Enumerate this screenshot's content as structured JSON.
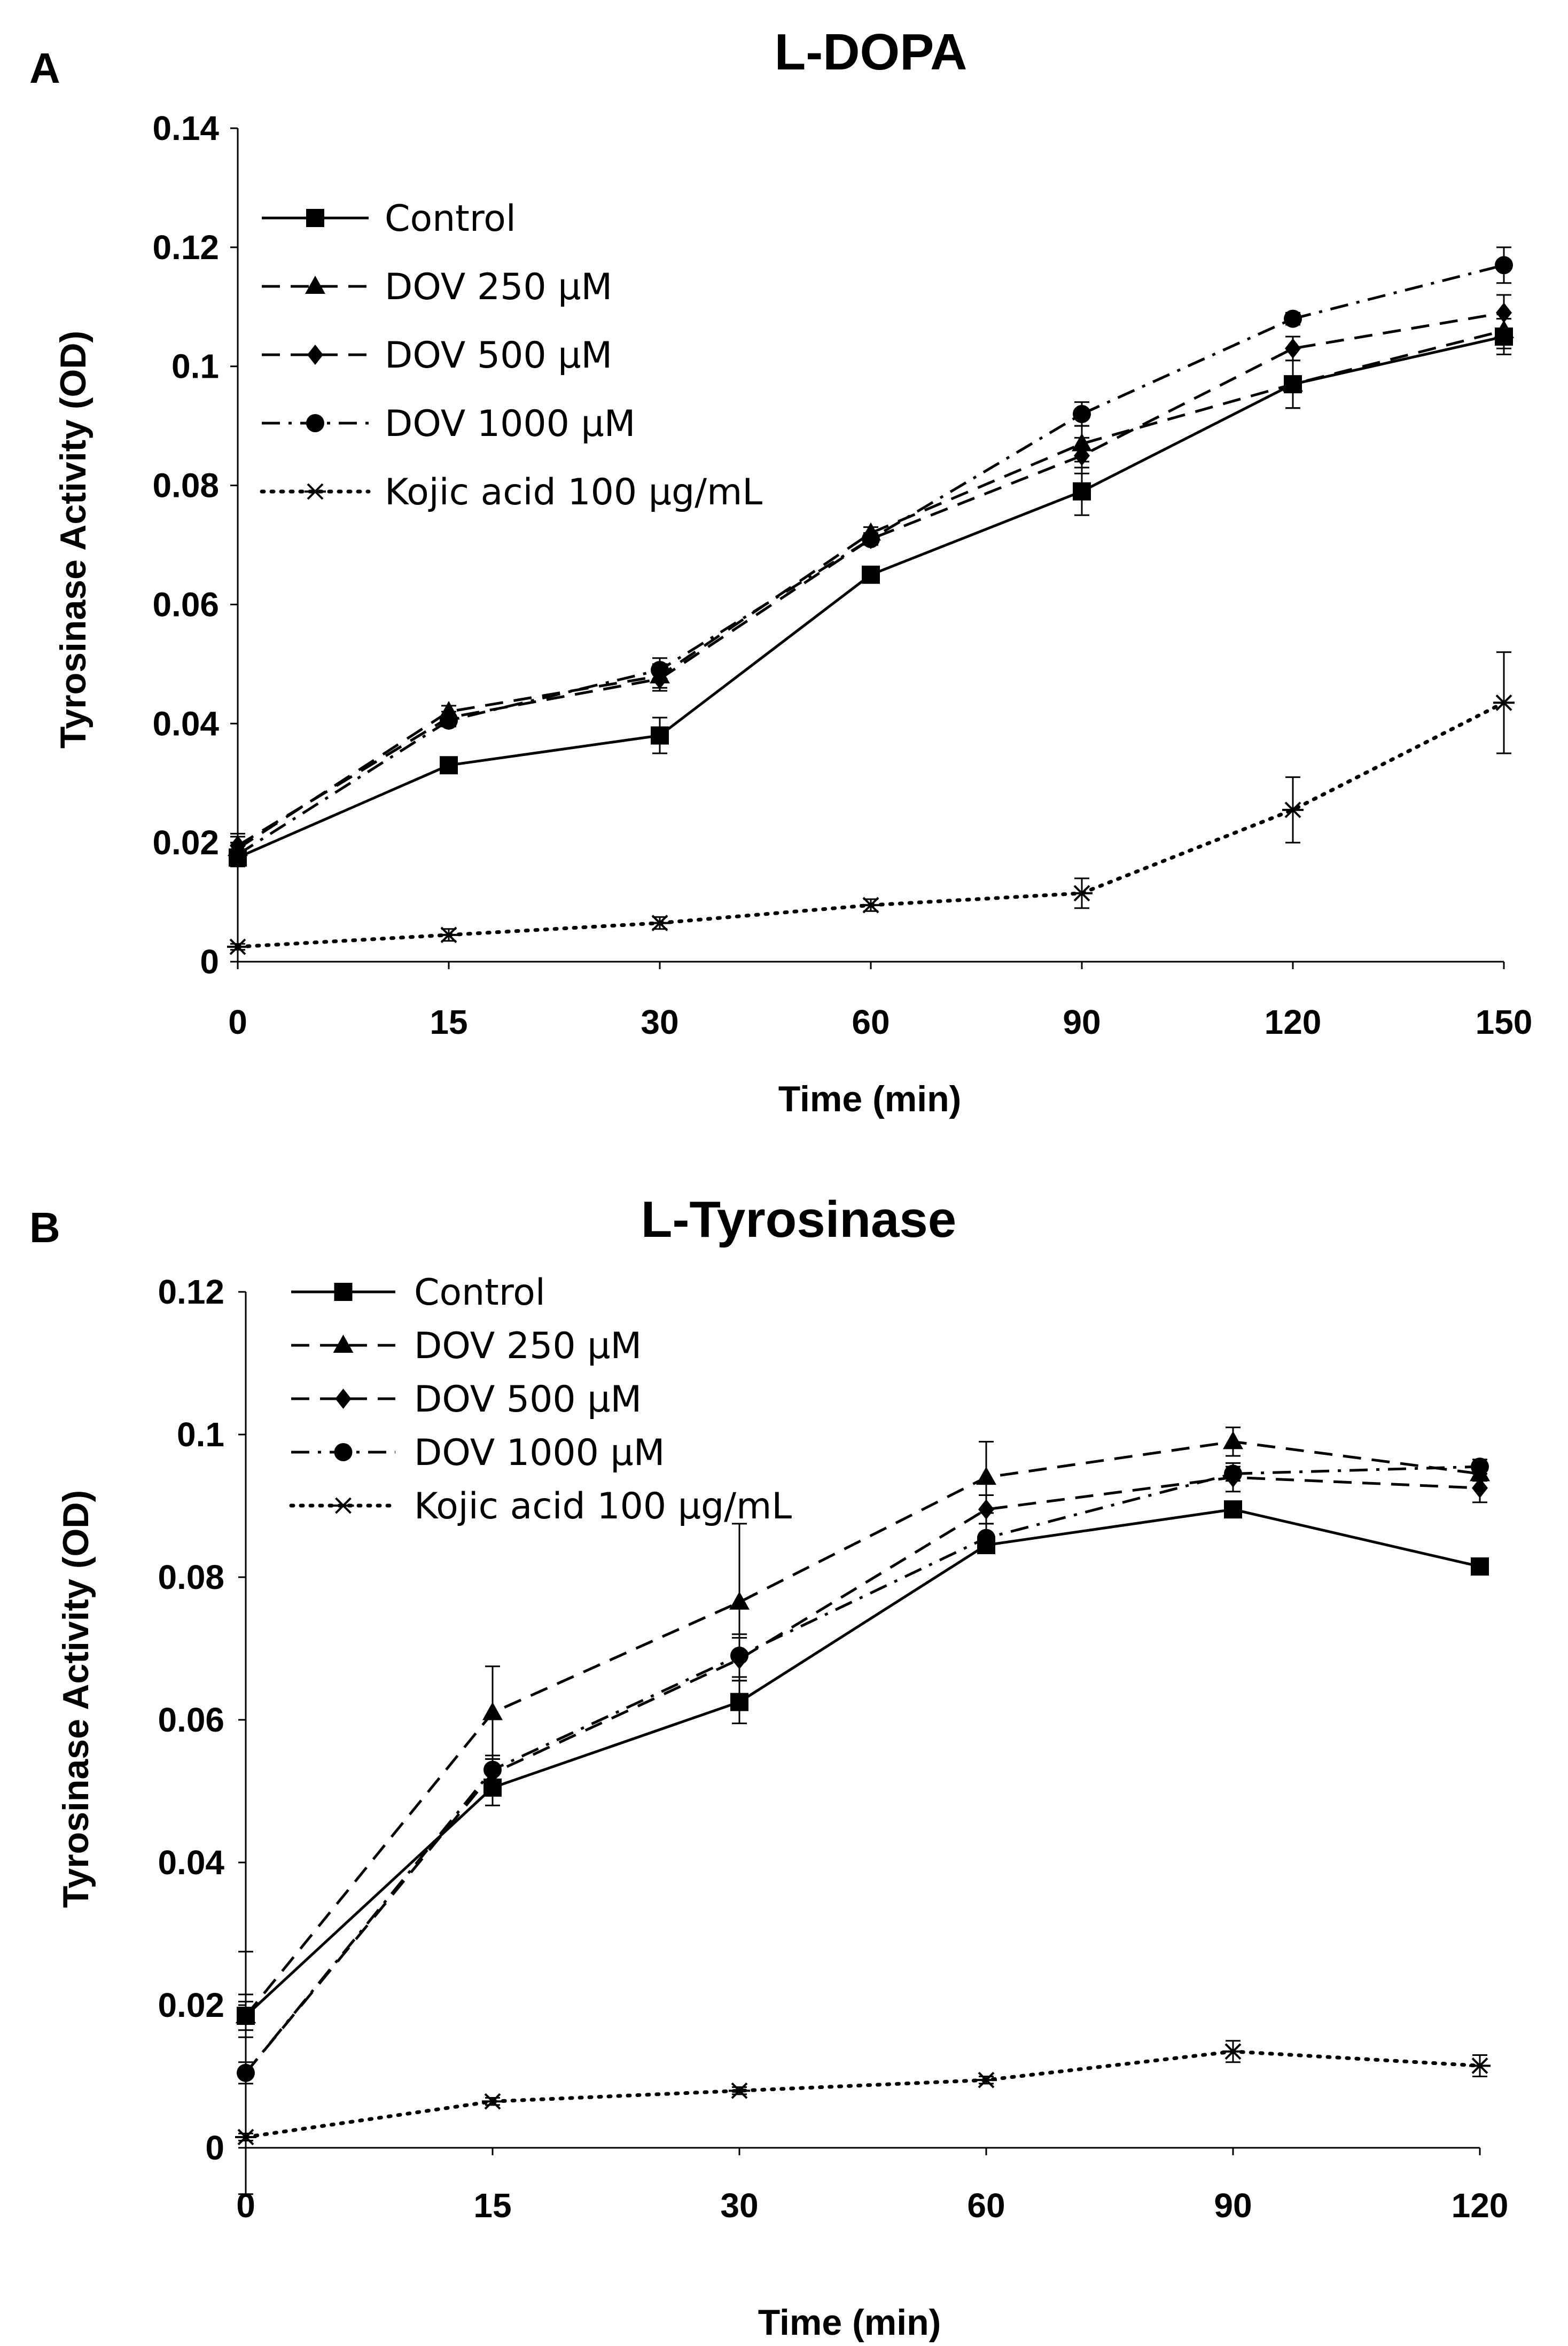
{
  "chart_data": [
    {
      "panel": "A",
      "type": "line",
      "title": "L-DOPA",
      "xlabel": "Time (min)",
      "ylabel": "Tyrosinase Activity (OD)",
      "categories": [
        "0",
        "15",
        "30",
        "60",
        "90",
        "120",
        "150"
      ],
      "ylim": [
        0,
        0.14
      ],
      "yticks": [
        "0",
        "0.02",
        "0.04",
        "0.06",
        "0.08",
        "0.1",
        "0.12",
        "0.14"
      ],
      "grid": false,
      "legend_position": "top-left",
      "series": [
        {
          "name": "Control",
          "style": "solid",
          "marker": "square",
          "values": [
            0.0175,
            0.033,
            0.038,
            0.065,
            0.079,
            0.097,
            0.105
          ],
          "errors": [
            0.001,
            0.001,
            0.003,
            0.001,
            0.004,
            0.004,
            0.003
          ]
        },
        {
          "name": "DOV 250 μM",
          "style": "dashed",
          "marker": "triangle",
          "values": [
            0.019,
            0.042,
            0.048,
            0.072,
            0.087,
            0.097,
            0.106
          ],
          "errors": [
            0.002,
            0.001,
            0.002,
            0.001,
            0.003,
            0.004,
            0.003
          ]
        },
        {
          "name": "DOV 500 μM",
          "style": "dashed",
          "marker": "diamond",
          "values": [
            0.0195,
            0.041,
            0.0475,
            0.071,
            0.085,
            0.103,
            0.109
          ],
          "errors": [
            0.002,
            0.001,
            0.002,
            0.001,
            0.003,
            0.002,
            0.003
          ]
        },
        {
          "name": "DOV 1000 μM",
          "style": "dashdot",
          "marker": "circle",
          "values": [
            0.018,
            0.0405,
            0.049,
            0.071,
            0.092,
            0.108,
            0.117
          ],
          "errors": [
            0.002,
            0.001,
            0.002,
            0.001,
            0.002,
            0.001,
            0.003
          ]
        },
        {
          "name": "Kojic acid 100 μg/mL",
          "style": "dotted",
          "marker": "asterisk",
          "values": [
            0.0025,
            0.0045,
            0.0065,
            0.0095,
            0.0115,
            0.0255,
            0.0435
          ],
          "errors": [
            0.0005,
            0.001,
            0.001,
            0.001,
            0.0025,
            0.0055,
            0.0085
          ]
        }
      ]
    },
    {
      "panel": "B",
      "type": "line",
      "title": "L-Tyrosinase",
      "xlabel": "Time (min)",
      "ylabel": "Tyrosinase Activity (OD)",
      "categories": [
        "0",
        "15",
        "30",
        "60",
        "90",
        "120"
      ],
      "ylim": [
        0,
        0.12
      ],
      "yticks": [
        "0",
        "0.02",
        "0.04",
        "0.06",
        "0.08",
        "0.1",
        "0.12"
      ],
      "grid": false,
      "legend_position": "top-left",
      "series": [
        {
          "name": "Control",
          "style": "solid",
          "marker": "square",
          "values": [
            0.0185,
            0.0505,
            0.0625,
            0.0845,
            0.0895,
            0.0815
          ],
          "errors": [
            0.002,
            0.0025,
            0.003,
            0.001,
            0.001,
            0.001
          ]
        },
        {
          "name": "DOV 250 μM",
          "style": "dashed",
          "marker": "triangle",
          "values": [
            0.0185,
            0.061,
            0.0765,
            0.094,
            0.099,
            0.0945
          ],
          "errors": [
            0.003,
            0.0065,
            0.011,
            0.005,
            0.002,
            0.001
          ]
        },
        {
          "name": "DOV 500 μM",
          "style": "dashed",
          "marker": "diamond",
          "values": [
            0.0105,
            0.0525,
            0.0685,
            0.0895,
            0.094,
            0.0925
          ],
          "errors": [
            0.0015,
            0.002,
            0.003,
            0.002,
            0.002,
            0.002
          ]
        },
        {
          "name": "DOV 1000 μM",
          "style": "dashdot",
          "marker": "circle",
          "values": [
            0.0105,
            0.053,
            0.069,
            0.0855,
            0.0945,
            0.0955
          ],
          "errors": [
            0.017,
            0.002,
            0.003,
            0.002,
            0.001,
            0.001
          ]
        },
        {
          "name": "Kojic acid 100 μg/mL",
          "style": "dotted",
          "marker": "asterisk",
          "values": [
            0.0015,
            0.0065,
            0.008,
            0.0095,
            0.0135,
            0.0115
          ],
          "errors": [
            0.0005,
            0.0005,
            0.0005,
            0.0005,
            0.0015,
            0.0015
          ]
        }
      ]
    }
  ]
}
